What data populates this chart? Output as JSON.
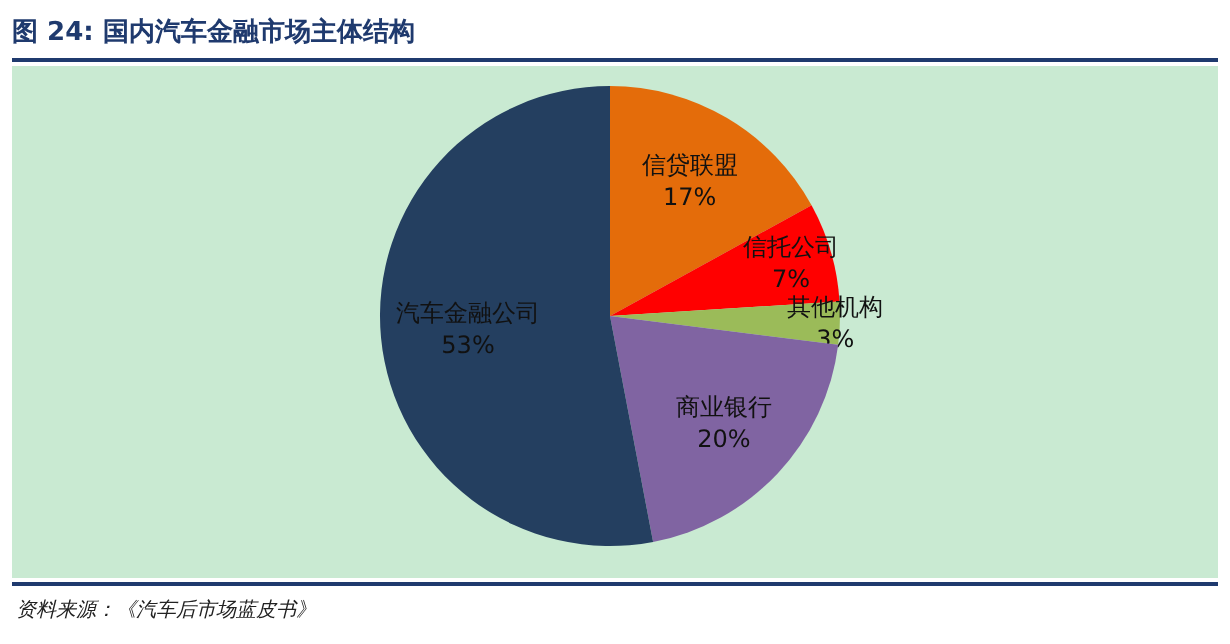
{
  "chart_data": {
    "type": "pie",
    "title": "图 24: 国内汽车金融市场主体结构",
    "categories": [
      "信贷联盟",
      "信托公司",
      "其他机构",
      "商业银行",
      "汽车金融公司"
    ],
    "values": [
      17,
      7,
      3,
      20,
      53
    ],
    "value_labels": [
      "17%",
      "7%",
      "3%",
      "20%",
      "53%"
    ],
    "colors": [
      "#e46c0a",
      "#ff0000",
      "#9bbb59",
      "#8064a2",
      "#243f60"
    ],
    "annotations": [
      "资料来源：《汽车后市场蓝皮书》"
    ]
  }
}
